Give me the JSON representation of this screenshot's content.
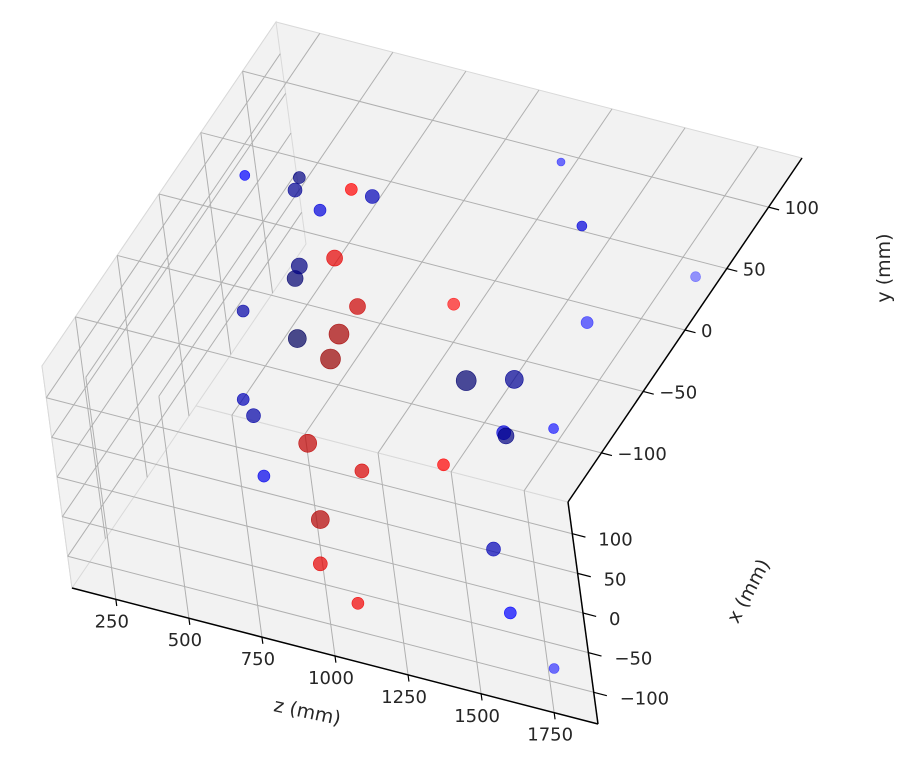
{
  "chart_data": {
    "type": "scatter",
    "projection": "3d",
    "xlabel": "z (mm)",
    "ylabel": "x (mm)",
    "zlabel": "y (mm)",
    "xlim": [
      100,
      1900
    ],
    "ylim": [
      -140,
      140
    ],
    "zlim": [
      -140,
      140
    ],
    "xticks": [
      250,
      500,
      750,
      1000,
      1250,
      1500,
      1750
    ],
    "yticks": [
      -100,
      -50,
      0,
      50,
      100
    ],
    "zticks": [
      -100,
      -50,
      0,
      50,
      100
    ],
    "xtick_labels": [
      "250",
      "500",
      "750",
      "1000",
      "1250",
      "1500",
      "1750"
    ],
    "ytick_labels": [
      "−100",
      "−50",
      "0",
      "50",
      "100"
    ],
    "ztick_labels": [
      "−100",
      "−50",
      "0",
      "50",
      "100"
    ],
    "grid": true,
    "colormap": "seismic",
    "color_range": [
      -1,
      1
    ],
    "colors": {
      "pane": "#f2f2f2",
      "grid": "#b0b0b0",
      "deep_blue": "#000066",
      "blue": "#2020ff",
      "white": "#ffffff",
      "red": "#ff1010",
      "deep_red": "#800000"
    },
    "points": [
      [
        1100,
        0,
        0,
        -0.9,
        10
      ],
      [
        1200,
        -20,
        20,
        -0.8,
        9
      ],
      [
        1250,
        -40,
        -10,
        -0.85,
        8
      ],
      [
        1350,
        20,
        -40,
        -0.6,
        7
      ],
      [
        1400,
        -60,
        -80,
        -0.7,
        7
      ],
      [
        1500,
        -100,
        -100,
        -0.5,
        6
      ],
      [
        1450,
        60,
        30,
        -0.4,
        6
      ],
      [
        1600,
        80,
        -60,
        -0.45,
        5
      ],
      [
        1700,
        -120,
        -120,
        -0.4,
        5
      ],
      [
        1750,
        100,
        60,
        -0.3,
        5
      ],
      [
        1300,
        90,
        80,
        -0.6,
        5
      ],
      [
        1150,
        110,
        110,
        -0.4,
        4
      ],
      [
        600,
        -20,
        20,
        0.85,
        10
      ],
      [
        700,
        20,
        -20,
        0.9,
        10
      ],
      [
        650,
        -60,
        -40,
        0.75,
        9
      ],
      [
        800,
        -80,
        -80,
        0.8,
        9
      ],
      [
        550,
        40,
        40,
        0.6,
        8
      ],
      [
        750,
        60,
        0,
        0.7,
        8
      ],
      [
        900,
        -40,
        -60,
        0.65,
        7
      ],
      [
        850,
        -100,
        -100,
        0.6,
        7
      ],
      [
        1000,
        -120,
        -110,
        0.55,
        6
      ],
      [
        500,
        60,
        80,
        0.5,
        6
      ],
      [
        950,
        20,
        40,
        0.45,
        6
      ],
      [
        1050,
        -80,
        -20,
        0.5,
        6
      ],
      [
        450,
        -40,
        20,
        -0.95,
        9
      ],
      [
        400,
        0,
        40,
        -0.9,
        8
      ],
      [
        350,
        -20,
        60,
        -0.85,
        8
      ],
      [
        300,
        40,
        80,
        -0.8,
        7
      ],
      [
        250,
        20,
        100,
        -0.85,
        6
      ],
      [
        500,
        20,
        100,
        -0.7,
        7
      ],
      [
        400,
        -80,
        -20,
        -0.75,
        7
      ],
      [
        300,
        -100,
        0,
        -0.7,
        6
      ],
      [
        200,
        -60,
        40,
        -0.75,
        6
      ],
      [
        450,
        60,
        60,
        -0.6,
        6
      ],
      [
        550,
        -80,
        -60,
        -0.55,
        6
      ],
      [
        200,
        80,
        60,
        -0.5,
        5
      ]
    ]
  }
}
